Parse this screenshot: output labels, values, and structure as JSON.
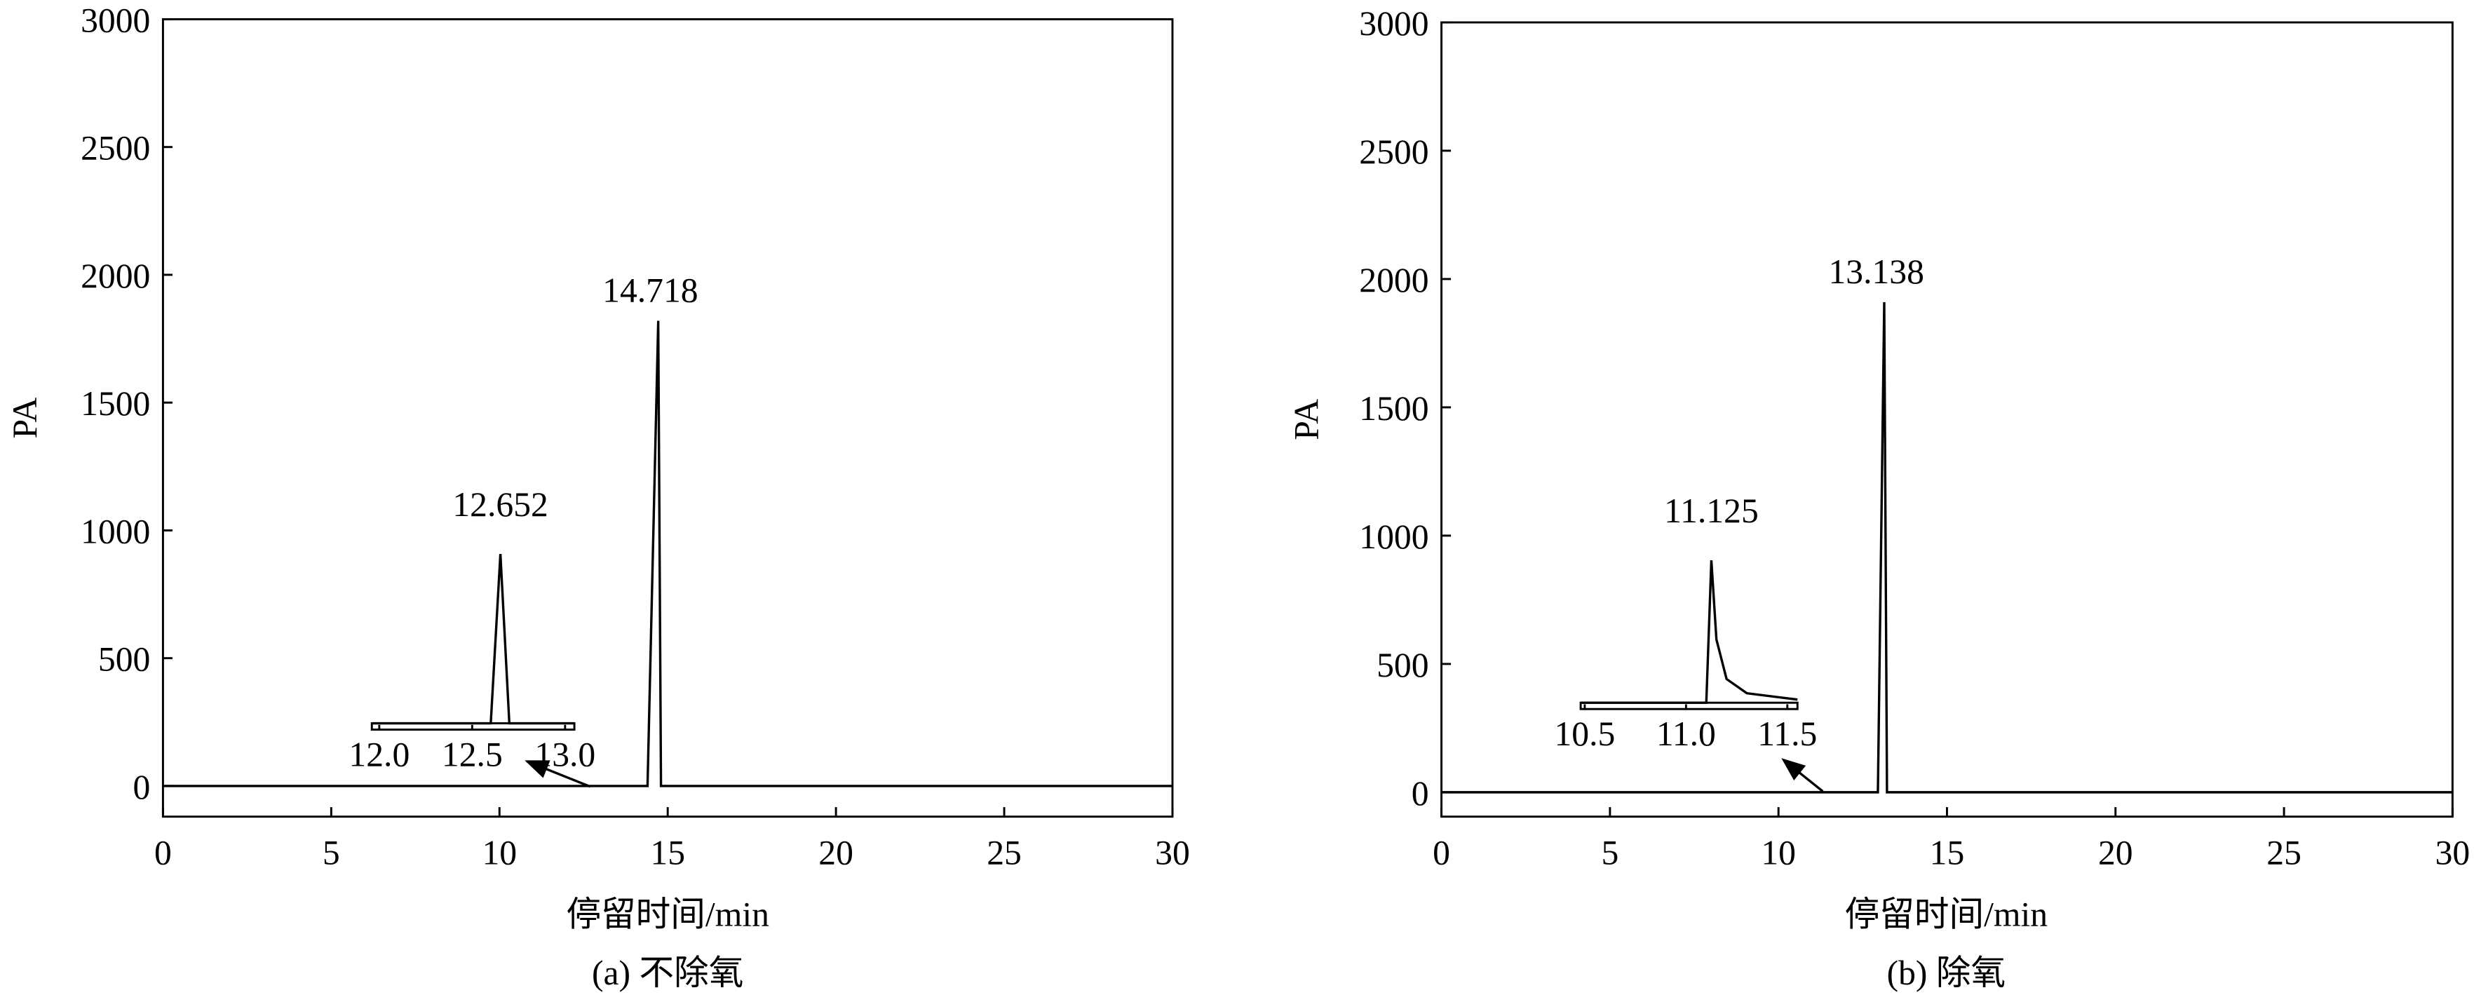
{
  "chart_data": [
    {
      "type": "line",
      "title": "(a) 不除氧",
      "xlabel": "停留时间/min",
      "ylabel": "PA",
      "color": "#000000",
      "xlim": [
        0,
        30
      ],
      "xticks": [
        0,
        5,
        10,
        15,
        20,
        25,
        30
      ],
      "ylim": [
        -120,
        3000
      ],
      "yticks": [
        0,
        500,
        1000,
        1500,
        2000,
        2500,
        3000
      ],
      "x": [
        0,
        14.4,
        14.718,
        14.8,
        30
      ],
      "values": [
        0,
        0,
        1820,
        0,
        0
      ],
      "annotations": [
        {
          "x": 14.718,
          "text": "14.718"
        }
      ],
      "inset": {
        "xlim": [
          11.96,
          13.05
        ],
        "xticks": [
          {
            "value": 12,
            "label": "12.0"
          },
          {
            "value": 12.5,
            "label": "12.5"
          },
          {
            "value": 13,
            "label": "13.0"
          }
        ],
        "ylim": [
          0,
          120
        ],
        "x": [
          11.96,
          12.6,
          12.652,
          12.7,
          13.05
        ],
        "values": [
          0,
          0,
          107,
          0,
          0
        ],
        "annotation": "12.652"
      }
    },
    {
      "type": "line",
      "title": "(b) 除氧",
      "xlabel": "停留时间/min",
      "ylabel": "PA",
      "color": "#000000",
      "xlim": [
        0,
        30
      ],
      "xticks": [
        0,
        5,
        10,
        15,
        20,
        25,
        30
      ],
      "ylim": [
        -95,
        3000
      ],
      "yticks": [
        0,
        500,
        1000,
        1500,
        2000,
        2500,
        3000
      ],
      "x": [
        0,
        12.95,
        13.138,
        13.22,
        30
      ],
      "values": [
        0,
        0,
        1910,
        0,
        0
      ],
      "annotations": [
        {
          "x": 13.138,
          "text": "13.138"
        }
      ],
      "inset": {
        "xlim": [
          10.48,
          11.55
        ],
        "xticks": [
          {
            "value": 10.5,
            "label": "10.5"
          },
          {
            "value": 11,
            "label": "11.0"
          },
          {
            "value": 11.5,
            "label": "11.5"
          }
        ],
        "ylim": [
          0,
          120
        ],
        "x": [
          10.48,
          11.1,
          11.125,
          11.15,
          11.2,
          11.3,
          11.55
        ],
        "values": [
          0,
          0,
          90,
          40,
          15,
          6,
          2
        ],
        "annotation": "11.125"
      }
    }
  ]
}
